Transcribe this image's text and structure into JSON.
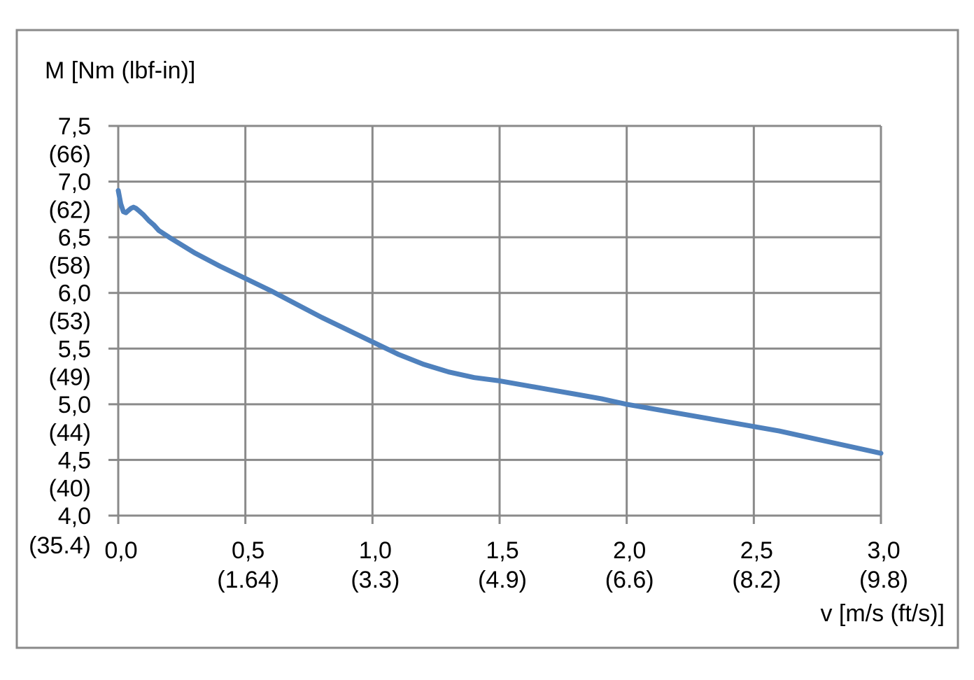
{
  "chart_data": {
    "type": "line",
    "ylabel": "M [Nm (lbf-in)]",
    "xlabel": "v [m/s (ft/s)]",
    "xlim": [
      0,
      3.0
    ],
    "ylim": [
      4.0,
      7.5
    ],
    "grid": true,
    "x_ticks": [
      {
        "value": 0.0,
        "label": "0,0",
        "sub": ""
      },
      {
        "value": 0.5,
        "label": "0,5",
        "sub": "(1.64)"
      },
      {
        "value": 1.0,
        "label": "1,0",
        "sub": "(3.3)"
      },
      {
        "value": 1.5,
        "label": "1,5",
        "sub": "(4.9)"
      },
      {
        "value": 2.0,
        "label": "2,0",
        "sub": "(6.6)"
      },
      {
        "value": 2.5,
        "label": "2,5",
        "sub": "(8.2)"
      },
      {
        "value": 3.0,
        "label": "3,0",
        "sub": "(9.8)"
      }
    ],
    "y_ticks": [
      {
        "value": 7.5,
        "label": "7,5",
        "sub": "(66)"
      },
      {
        "value": 7.0,
        "label": "7,0",
        "sub": "(62)"
      },
      {
        "value": 6.5,
        "label": "6,5",
        "sub": "(58)"
      },
      {
        "value": 6.0,
        "label": "6,0",
        "sub": "(53)"
      },
      {
        "value": 5.5,
        "label": "5,5",
        "sub": "(49)"
      },
      {
        "value": 5.0,
        "label": "5,0",
        "sub": "(44)"
      },
      {
        "value": 4.5,
        "label": "4,5",
        "sub": "(40)"
      },
      {
        "value": 4.0,
        "label": "4,0",
        "sub": "(35.4)"
      }
    ],
    "series": [
      {
        "color": "#4f81bd",
        "x": [
          0.0,
          0.01,
          0.02,
          0.03,
          0.04,
          0.05,
          0.06,
          0.07,
          0.08,
          0.1,
          0.12,
          0.14,
          0.16,
          0.2,
          0.3,
          0.4,
          0.5,
          0.6,
          0.7,
          0.8,
          0.9,
          1.0,
          1.1,
          1.2,
          1.3,
          1.4,
          1.5,
          1.6,
          1.7,
          1.8,
          1.9,
          2.0,
          2.2,
          2.4,
          2.6,
          2.8,
          3.0
        ],
        "y": [
          6.92,
          6.8,
          6.73,
          6.72,
          6.74,
          6.76,
          6.77,
          6.76,
          6.74,
          6.7,
          6.65,
          6.61,
          6.56,
          6.5,
          6.36,
          6.24,
          6.13,
          6.02,
          5.9,
          5.78,
          5.67,
          5.56,
          5.45,
          5.36,
          5.29,
          5.24,
          5.21,
          5.17,
          5.13,
          5.09,
          5.05,
          5.0,
          4.92,
          4.84,
          4.76,
          4.66,
          4.56
        ]
      }
    ]
  }
}
